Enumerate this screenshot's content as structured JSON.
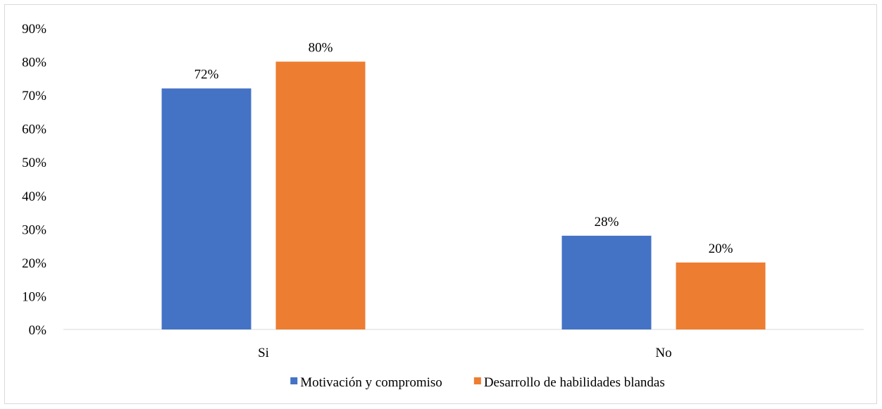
{
  "chart_data": {
    "type": "bar",
    "title": "",
    "xlabel": "",
    "ylabel": "",
    "categories": [
      "Si",
      "No"
    ],
    "series": [
      {
        "name": "Motivación y compromiso",
        "values": [
          72,
          28
        ],
        "labels": [
          "72%",
          "28%"
        ],
        "color": "#4472C4"
      },
      {
        "name": "Desarrollo de habilidades blandas",
        "values": [
          80,
          20
        ],
        "labels": [
          "80%",
          "20%"
        ],
        "color": "#ED7D31"
      }
    ],
    "ylim": [
      0,
      90
    ],
    "yticks": [
      0,
      10,
      20,
      30,
      40,
      50,
      60,
      70,
      80,
      90
    ],
    "ytick_labels": [
      "0%",
      "10%",
      "20%",
      "30%",
      "40%",
      "50%",
      "60%",
      "70%",
      "80%",
      "90%"
    ],
    "grid": false,
    "legend_position": "bottom",
    "axis_color": "#d9d9d9",
    "text_color": "#000000"
  }
}
